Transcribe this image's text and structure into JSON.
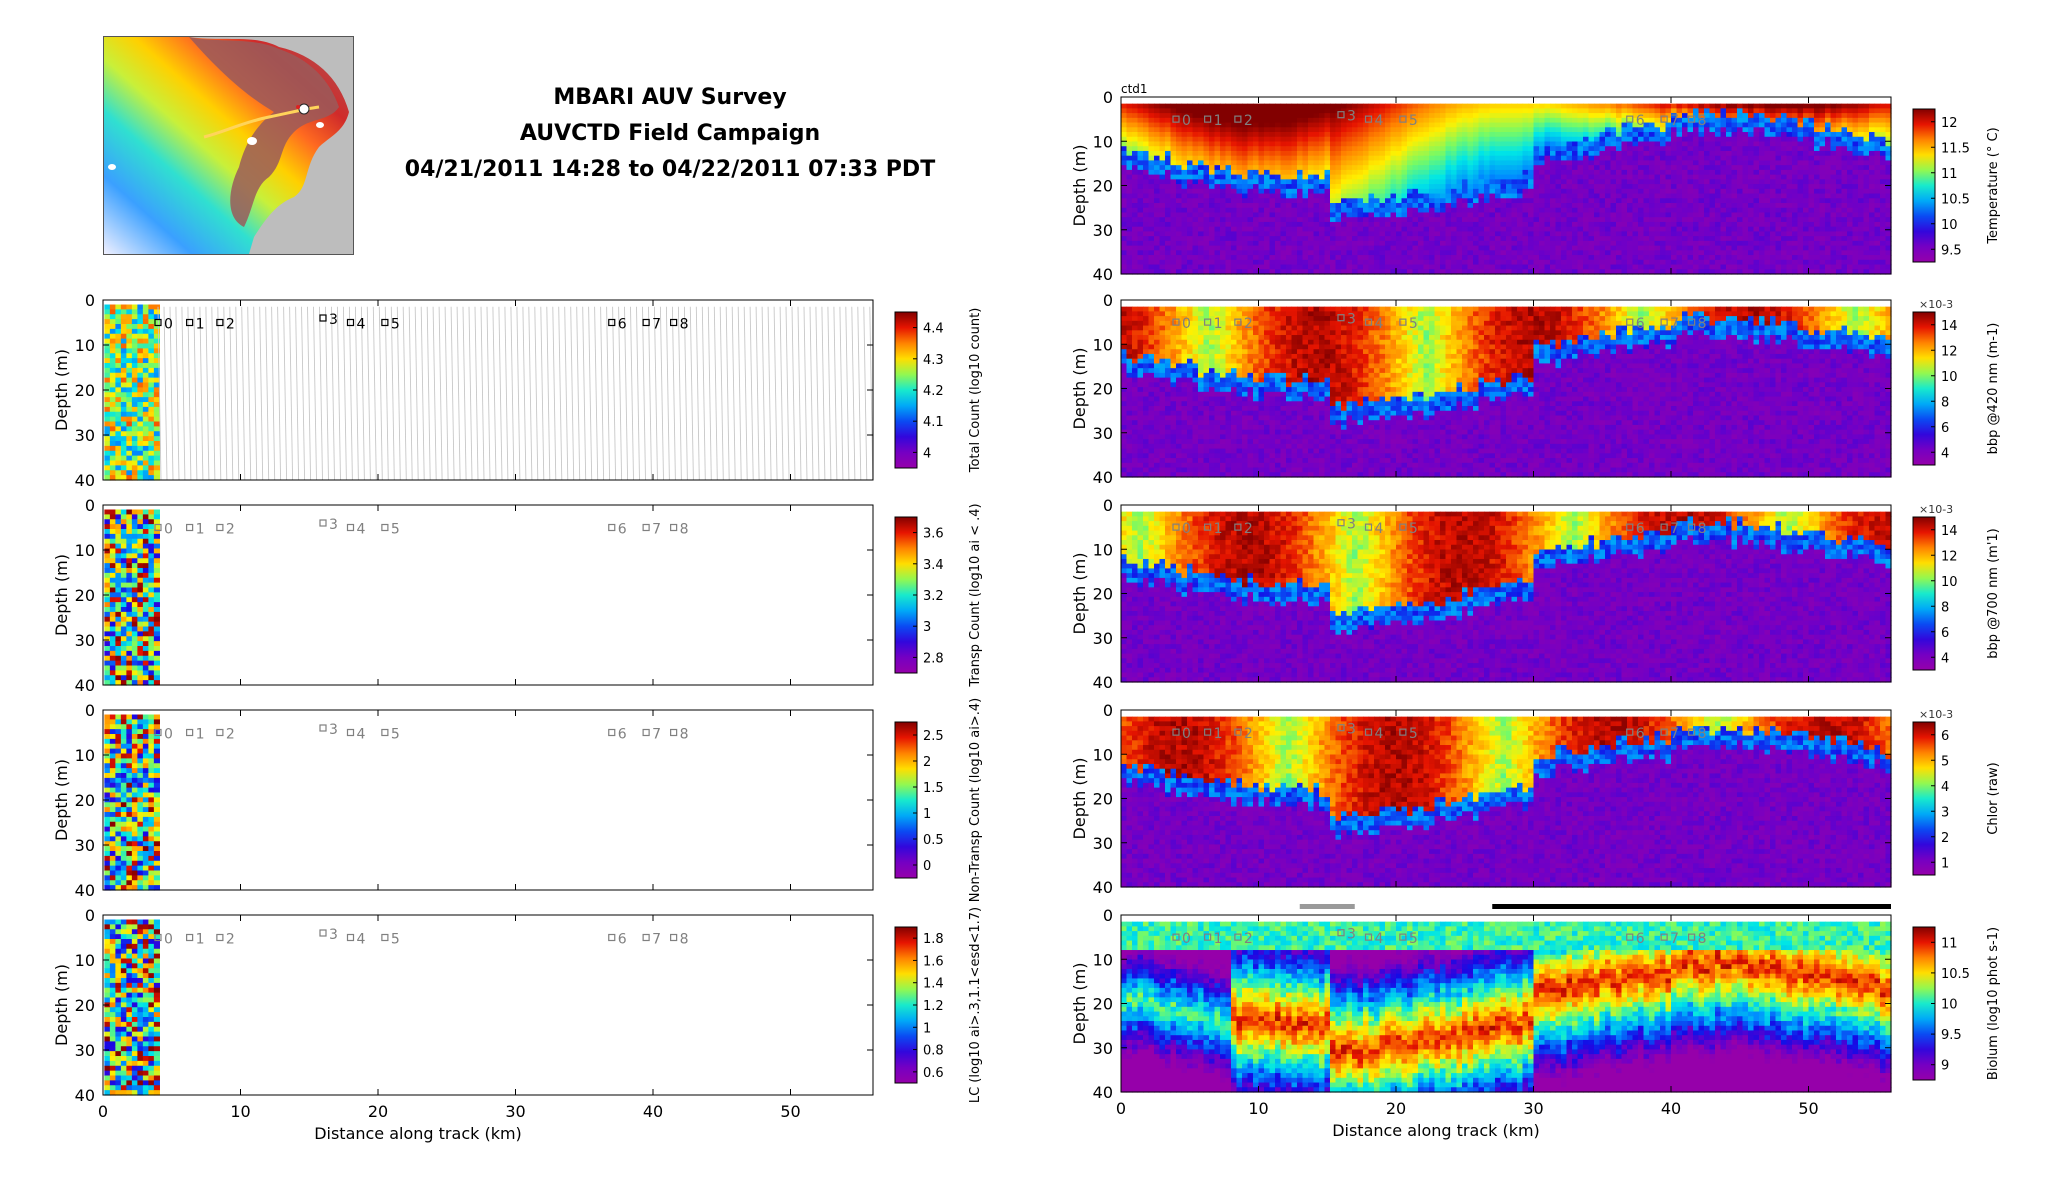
{
  "titles": {
    "line1": "MBARI AUV Survey",
    "line2": "AUVCTD Field Campaign",
    "line3": "04/21/2011 14:28 to 04/22/2011 07:33 PDT"
  },
  "chart_data": [
    {
      "type": "heatmap",
      "panel": "left-1",
      "ylabel": "Depth (m)",
      "xlabel": "",
      "xlim": [
        0,
        56
      ],
      "ylim": [
        40,
        0
      ],
      "yticks": [
        "0",
        "10",
        "20",
        "30",
        "40"
      ],
      "colorbar_label": "Total Count (log10 count)",
      "colorbar_ticks": [
        "4",
        "4.1",
        "4.2",
        "4.3",
        "4.4"
      ],
      "data_extent_km": [
        0,
        4
      ],
      "track_lines": "gray",
      "stations": [
        {
          "label": "0",
          "x": 4,
          "y": 5
        },
        {
          "label": "1",
          "x": 6.3,
          "y": 5
        },
        {
          "label": "2",
          "x": 8.5,
          "y": 5
        },
        {
          "label": "3",
          "x": 16,
          "y": 4
        },
        {
          "label": "4",
          "x": 18,
          "y": 5
        },
        {
          "label": "5",
          "x": 20.5,
          "y": 5
        },
        {
          "label": "6",
          "x": 37,
          "y": 5
        },
        {
          "label": "7",
          "x": 39.5,
          "y": 5
        },
        {
          "label": "8",
          "x": 41.5,
          "y": 5
        }
      ]
    },
    {
      "type": "heatmap",
      "panel": "left-2",
      "ylabel": "Depth (m)",
      "xlim": [
        0,
        56
      ],
      "ylim": [
        40,
        0
      ],
      "yticks": [
        "0",
        "10",
        "20",
        "30",
        "40"
      ],
      "colorbar_label": "Transp Count (log10 ai < .4)",
      "colorbar_ticks": [
        "2.8",
        "3",
        "3.2",
        "3.4",
        "3.6"
      ],
      "data_extent_km": [
        0,
        4
      ]
    },
    {
      "type": "heatmap",
      "panel": "left-3",
      "ylabel": "Depth (m)",
      "xlim": [
        0,
        56
      ],
      "ylim": [
        40,
        0
      ],
      "yticks": [
        "0",
        "10",
        "20",
        "30",
        "40"
      ],
      "colorbar_label": "Non-Transp Count (log10 ai>.4)",
      "colorbar_ticks": [
        "0",
        "0.5",
        "1",
        "1.5",
        "2",
        "2.5"
      ],
      "data_extent_km": [
        0,
        4
      ]
    },
    {
      "type": "heatmap",
      "panel": "left-4",
      "ylabel": "Depth (m)",
      "xlabel": "Distance along track (km)",
      "xlim": [
        0,
        56
      ],
      "ylim": [
        40,
        0
      ],
      "yticks": [
        "0",
        "10",
        "20",
        "30",
        "40"
      ],
      "xticks": [
        "0",
        "10",
        "20",
        "30",
        "40",
        "50"
      ],
      "colorbar_label": "LC (log10 ai>.3,1.1<esd<1.7)",
      "colorbar_ticks": [
        "0.6",
        "0.8",
        "1",
        "1.2",
        "1.4",
        "1.6",
        "1.8"
      ],
      "data_extent_km": [
        0,
        4
      ]
    },
    {
      "type": "heatmap",
      "panel": "right-1",
      "ylabel": "Depth (m)",
      "xlim": [
        0,
        56
      ],
      "ylim": [
        40,
        0
      ],
      "yticks": [
        "0",
        "10",
        "20",
        "30",
        "40"
      ],
      "corner_label": "ctd1",
      "colorbar_label": "Temperature (° C)",
      "colorbar_ticks": [
        "9.5",
        "10",
        "10.5",
        "11",
        "11.5",
        "12"
      ],
      "data_extent_km": [
        0,
        56
      ]
    },
    {
      "type": "heatmap",
      "panel": "right-2",
      "ylabel": "Depth (m)",
      "xlim": [
        0,
        56
      ],
      "ylim": [
        40,
        0
      ],
      "yticks": [
        "0",
        "10",
        "20",
        "30",
        "40"
      ],
      "colorbar_label": "bbp @420 nm (m-1)",
      "colorbar_exponent": "×10-3",
      "colorbar_ticks": [
        "4",
        "6",
        "8",
        "10",
        "12",
        "14"
      ],
      "data_extent_km": [
        0,
        56
      ]
    },
    {
      "type": "heatmap",
      "panel": "right-3",
      "ylabel": "Depth (m)",
      "xlim": [
        0,
        56
      ],
      "ylim": [
        40,
        0
      ],
      "yticks": [
        "0",
        "10",
        "20",
        "30",
        "40"
      ],
      "colorbar_label": "bbp @700 nm (m'1)",
      "colorbar_exponent": "×10-3",
      "colorbar_ticks": [
        "4",
        "6",
        "8",
        "10",
        "12",
        "14"
      ],
      "data_extent_km": [
        0,
        56
      ]
    },
    {
      "type": "heatmap",
      "panel": "right-4",
      "ylabel": "Depth (m)",
      "xlim": [
        0,
        56
      ],
      "ylim": [
        40,
        0
      ],
      "yticks": [
        "0",
        "10",
        "20",
        "30",
        "40"
      ],
      "colorbar_label": "Chlor (raw)",
      "colorbar_exponent": "×10-3",
      "colorbar_ticks": [
        "1",
        "2",
        "3",
        "4",
        "5",
        "6"
      ],
      "data_extent_km": [
        0,
        56
      ]
    },
    {
      "type": "heatmap",
      "panel": "right-5",
      "ylabel": "Depth (m)",
      "xlabel": "Distance along track (km)",
      "xlim": [
        0,
        56
      ],
      "ylim": [
        40,
        0
      ],
      "yticks": [
        "0",
        "10",
        "20",
        "30",
        "40"
      ],
      "xticks": [
        "0",
        "10",
        "20",
        "30",
        "40",
        "50"
      ],
      "colorbar_label": "Biolum (log10 phot s-1)",
      "colorbar_ticks": [
        "9",
        "9.5",
        "10",
        "10.5",
        "11"
      ],
      "data_extent_km": [
        0,
        56
      ]
    }
  ]
}
